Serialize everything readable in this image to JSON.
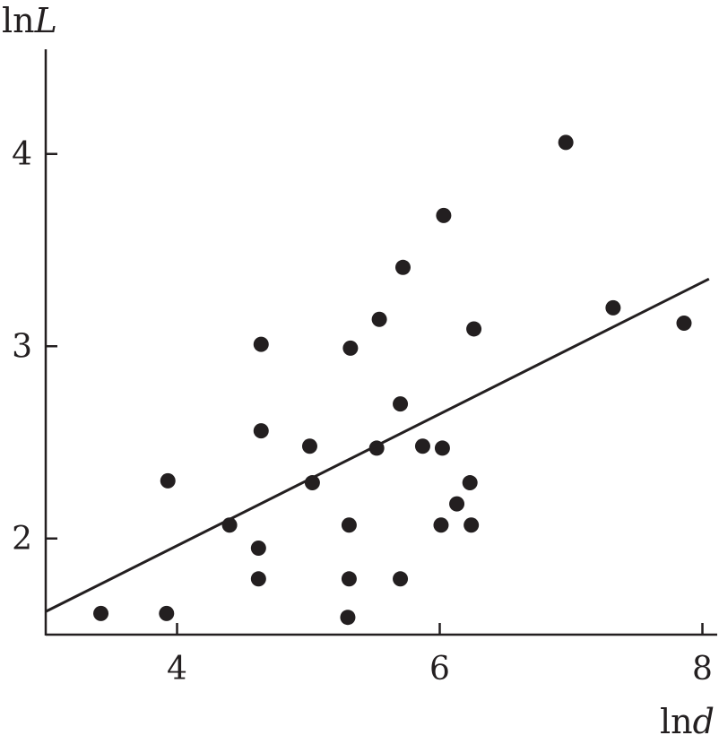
{
  "chart_data": {
    "type": "scatter",
    "title": "",
    "xlabel": {
      "prefix": "ln",
      "var": "d"
    },
    "ylabel": {
      "prefix": "ln",
      "var": "L"
    },
    "xlim": [
      3.0,
      8.0
    ],
    "ylim": [
      1.5,
      4.5
    ],
    "x_ticks": [
      4,
      6,
      8
    ],
    "y_ticks": [
      2,
      3,
      4
    ],
    "grid": false,
    "points": [
      {
        "x": 3.42,
        "y": 1.61
      },
      {
        "x": 3.92,
        "y": 1.61
      },
      {
        "x": 3.93,
        "y": 2.3
      },
      {
        "x": 4.4,
        "y": 2.07
      },
      {
        "x": 4.62,
        "y": 1.79
      },
      {
        "x": 4.62,
        "y": 1.95
      },
      {
        "x": 4.64,
        "y": 2.56
      },
      {
        "x": 4.64,
        "y": 3.01
      },
      {
        "x": 5.01,
        "y": 2.48
      },
      {
        "x": 5.03,
        "y": 2.29
      },
      {
        "x": 5.3,
        "y": 1.59
      },
      {
        "x": 5.31,
        "y": 1.79
      },
      {
        "x": 5.31,
        "y": 2.07
      },
      {
        "x": 5.32,
        "y": 2.99
      },
      {
        "x": 5.52,
        "y": 2.47
      },
      {
        "x": 5.54,
        "y": 3.14
      },
      {
        "x": 5.7,
        "y": 1.79
      },
      {
        "x": 5.7,
        "y": 2.7
      },
      {
        "x": 5.72,
        "y": 3.41
      },
      {
        "x": 5.87,
        "y": 2.48
      },
      {
        "x": 6.01,
        "y": 2.07
      },
      {
        "x": 6.02,
        "y": 2.47
      },
      {
        "x": 6.03,
        "y": 3.68
      },
      {
        "x": 6.13,
        "y": 2.18
      },
      {
        "x": 6.23,
        "y": 2.29
      },
      {
        "x": 6.24,
        "y": 2.07
      },
      {
        "x": 6.26,
        "y": 3.09
      },
      {
        "x": 6.96,
        "y": 4.06
      },
      {
        "x": 7.32,
        "y": 3.2
      },
      {
        "x": 7.86,
        "y": 3.12
      }
    ],
    "trendline": {
      "x1": 3.0,
      "y1": 1.62,
      "x2": 8.05,
      "y2": 3.35
    }
  }
}
